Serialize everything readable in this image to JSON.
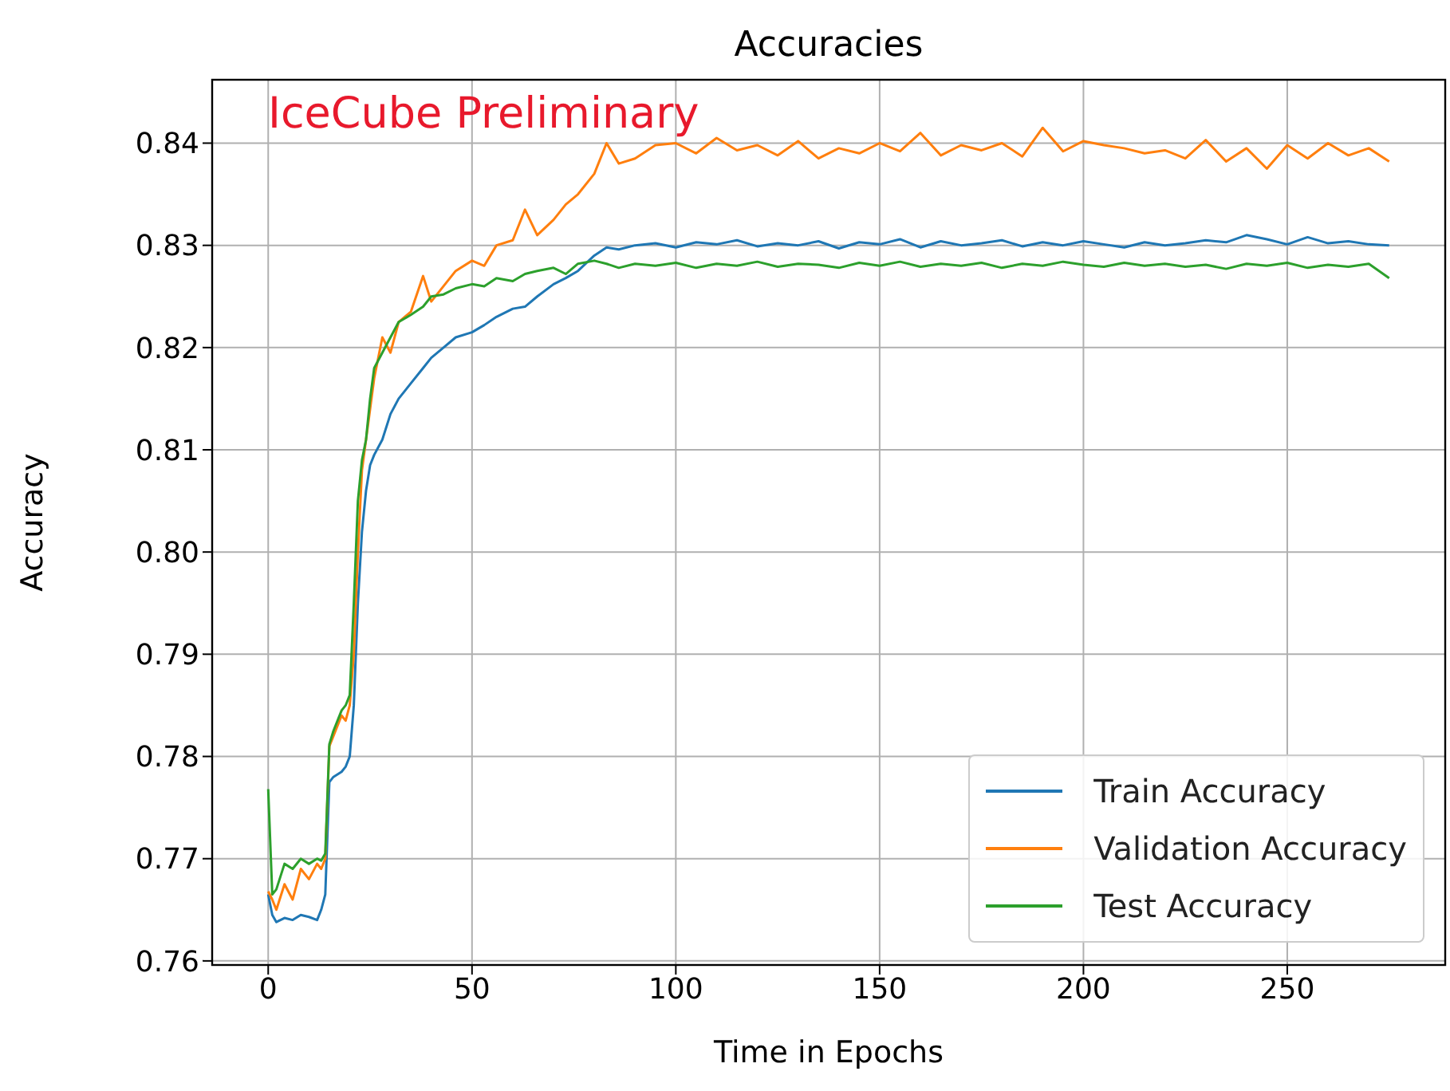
{
  "chart_data": {
    "type": "line",
    "title": "Accuracies",
    "xlabel": "Time in Epochs",
    "ylabel": "Accuracy",
    "annotations": [
      "IceCube Preliminary"
    ],
    "x": [
      0,
      1,
      2,
      4,
      6,
      8,
      10,
      12,
      13,
      14,
      15,
      16,
      18,
      19,
      20,
      21,
      22,
      23,
      24,
      25,
      26,
      28,
      30,
      32,
      35,
      38,
      40,
      43,
      46,
      50,
      53,
      56,
      60,
      63,
      66,
      70,
      73,
      76,
      80,
      83,
      86,
      90,
      95,
      100,
      105,
      110,
      115,
      120,
      125,
      130,
      135,
      140,
      145,
      150,
      155,
      160,
      165,
      170,
      175,
      180,
      185,
      190,
      195,
      200,
      205,
      210,
      215,
      220,
      225,
      230,
      235,
      240,
      245,
      250,
      255,
      260,
      265,
      270,
      275
    ],
    "series": [
      {
        "name": "Train Accuracy",
        "color": "#1f77b4",
        "values": [
          0.7665,
          0.7645,
          0.7638,
          0.7642,
          0.764,
          0.7645,
          0.7643,
          0.764,
          0.765,
          0.7665,
          0.7775,
          0.778,
          0.7785,
          0.779,
          0.78,
          0.785,
          0.795,
          0.802,
          0.806,
          0.8085,
          0.8095,
          0.811,
          0.8135,
          0.815,
          0.8165,
          0.818,
          0.819,
          0.82,
          0.821,
          0.8215,
          0.8222,
          0.823,
          0.8238,
          0.824,
          0.825,
          0.8262,
          0.8268,
          0.8275,
          0.829,
          0.8298,
          0.8296,
          0.83,
          0.8302,
          0.8298,
          0.8303,
          0.8301,
          0.8305,
          0.8299,
          0.8302,
          0.83,
          0.8304,
          0.8297,
          0.8303,
          0.8301,
          0.8306,
          0.8298,
          0.8304,
          0.83,
          0.8302,
          0.8305,
          0.8299,
          0.8303,
          0.83,
          0.8304,
          0.8301,
          0.8298,
          0.8303,
          0.83,
          0.8302,
          0.8305,
          0.8303,
          0.831,
          0.8306,
          0.8301,
          0.8308,
          0.8302,
          0.8304,
          0.8301,
          0.83
        ]
      },
      {
        "name": "Validation Accuracy",
        "color": "#ff7f0e",
        "values": [
          0.7668,
          0.766,
          0.765,
          0.7675,
          0.766,
          0.769,
          0.768,
          0.7695,
          0.769,
          0.77,
          0.781,
          0.782,
          0.784,
          0.7835,
          0.785,
          0.79,
          0.8,
          0.808,
          0.811,
          0.814,
          0.817,
          0.821,
          0.8195,
          0.8225,
          0.8235,
          0.827,
          0.8245,
          0.826,
          0.8275,
          0.8285,
          0.828,
          0.83,
          0.8305,
          0.8335,
          0.831,
          0.8325,
          0.834,
          0.835,
          0.837,
          0.84,
          0.838,
          0.8385,
          0.8398,
          0.84,
          0.839,
          0.8405,
          0.8393,
          0.8398,
          0.8388,
          0.8402,
          0.8385,
          0.8395,
          0.839,
          0.84,
          0.8392,
          0.841,
          0.8388,
          0.8398,
          0.8393,
          0.84,
          0.8387,
          0.8415,
          0.8392,
          0.8402,
          0.8398,
          0.8395,
          0.839,
          0.8393,
          0.8385,
          0.8403,
          0.8382,
          0.8395,
          0.8375,
          0.8398,
          0.8385,
          0.84,
          0.8388,
          0.8395,
          0.8382
        ]
      },
      {
        "name": "Test Accuracy",
        "color": "#2ca02c",
        "values": [
          0.7768,
          0.7665,
          0.767,
          0.7695,
          0.769,
          0.77,
          0.7695,
          0.77,
          0.7698,
          0.7705,
          0.7812,
          0.7825,
          0.7845,
          0.785,
          0.786,
          0.795,
          0.805,
          0.809,
          0.811,
          0.815,
          0.818,
          0.8195,
          0.821,
          0.8225,
          0.8232,
          0.824,
          0.825,
          0.8252,
          0.8258,
          0.8262,
          0.826,
          0.8268,
          0.8265,
          0.8272,
          0.8275,
          0.8278,
          0.8272,
          0.8282,
          0.8285,
          0.8282,
          0.8278,
          0.8282,
          0.828,
          0.8283,
          0.8278,
          0.8282,
          0.828,
          0.8284,
          0.8279,
          0.8282,
          0.8281,
          0.8278,
          0.8283,
          0.828,
          0.8284,
          0.8279,
          0.8282,
          0.828,
          0.8283,
          0.8278,
          0.8282,
          0.828,
          0.8284,
          0.8281,
          0.8279,
          0.8283,
          0.828,
          0.8282,
          0.8279,
          0.8281,
          0.8277,
          0.8282,
          0.828,
          0.8283,
          0.8278,
          0.8281,
          0.8279,
          0.8282,
          0.8268
        ]
      }
    ],
    "xlim": [
      -13.75,
      288.75
    ],
    "xticks": [
      0,
      50,
      100,
      150,
      200,
      250
    ],
    "ylim": [
      0.7596,
      0.8462
    ],
    "yticks": [
      0.76,
      0.77,
      0.78,
      0.79,
      {
        "value": 0.8,
        "label": "0.80"
      },
      0.81,
      0.82,
      0.83,
      0.84
    ],
    "grid": true,
    "legend": "bottom right",
    "marker": "none",
    "line_style": "solid"
  }
}
